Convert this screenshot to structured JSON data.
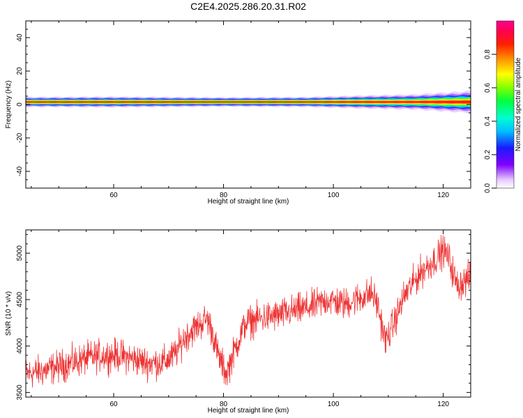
{
  "title": "C2E4.2025.286.20.31.R02",
  "chart_data": [
    {
      "type": "heatmap",
      "name": "spectrogram",
      "xlabel": "Height of straight line (km)",
      "ylabel": "Frequency (Hz)",
      "xlim": [
        44,
        125
      ],
      "ylim": [
        -50,
        50
      ],
      "xticks": [
        60,
        80,
        100,
        120
      ],
      "yticks": [
        40,
        20,
        0,
        -20,
        -40
      ],
      "band_center_hz": 1.5,
      "band_profile": [
        {
          "x": 44,
          "halfwidth_hz": 3.0
        },
        {
          "x": 60,
          "halfwidth_hz": 3.2
        },
        {
          "x": 80,
          "halfwidth_hz": 2.8
        },
        {
          "x": 95,
          "halfwidth_hz": 3.0
        },
        {
          "x": 105,
          "halfwidth_hz": 3.8
        },
        {
          "x": 115,
          "halfwidth_hz": 4.5
        },
        {
          "x": 120,
          "halfwidth_hz": 5.5
        },
        {
          "x": 125,
          "halfwidth_hz": 6.5
        }
      ],
      "colorbar": {
        "label": "Normalized spectral amplitude",
        "range": [
          0.0,
          1.0
        ],
        "ticks": [
          "0.0",
          "0.2",
          "0.4",
          "0.6",
          "0.8"
        ]
      }
    },
    {
      "type": "line",
      "name": "snr",
      "xlabel": "Height of straight line (km)",
      "ylabel": "SNR (10 * v/v)",
      "xlim": [
        44,
        125
      ],
      "ylim": [
        3450,
        5250
      ],
      "xticks": [
        60,
        80,
        100,
        120
      ],
      "yticks": [
        5000,
        4500,
        4000,
        3500
      ],
      "color": "#ee3333",
      "trend": [
        {
          "x": 44,
          "y": 3700
        },
        {
          "x": 47,
          "y": 3730
        },
        {
          "x": 50,
          "y": 3780
        },
        {
          "x": 53,
          "y": 3830
        },
        {
          "x": 56,
          "y": 3880
        },
        {
          "x": 58,
          "y": 3900
        },
        {
          "x": 61,
          "y": 3900
        },
        {
          "x": 63,
          "y": 3870
        },
        {
          "x": 66,
          "y": 3820
        },
        {
          "x": 69,
          "y": 3820
        },
        {
          "x": 71,
          "y": 3900
        },
        {
          "x": 73,
          "y": 4100
        },
        {
          "x": 75,
          "y": 4200
        },
        {
          "x": 77,
          "y": 4300
        },
        {
          "x": 78,
          "y": 4150
        },
        {
          "x": 79,
          "y": 3900
        },
        {
          "x": 80.5,
          "y": 3700
        },
        {
          "x": 82,
          "y": 3950
        },
        {
          "x": 84,
          "y": 4250
        },
        {
          "x": 87,
          "y": 4300
        },
        {
          "x": 90,
          "y": 4330
        },
        {
          "x": 93,
          "y": 4380
        },
        {
          "x": 96,
          "y": 4420
        },
        {
          "x": 99,
          "y": 4500
        },
        {
          "x": 102,
          "y": 4450
        },
        {
          "x": 104,
          "y": 4500
        },
        {
          "x": 107,
          "y": 4570
        },
        {
          "x": 108,
          "y": 4450
        },
        {
          "x": 109.5,
          "y": 4050
        },
        {
          "x": 111,
          "y": 4250
        },
        {
          "x": 113,
          "y": 4550
        },
        {
          "x": 116,
          "y": 4800
        },
        {
          "x": 118,
          "y": 4900
        },
        {
          "x": 120,
          "y": 5030
        },
        {
          "x": 121,
          "y": 4950
        },
        {
          "x": 122.5,
          "y": 4650
        },
        {
          "x": 124,
          "y": 4700
        },
        {
          "x": 125,
          "y": 4750
        }
      ],
      "noise_amplitude": 130
    }
  ]
}
